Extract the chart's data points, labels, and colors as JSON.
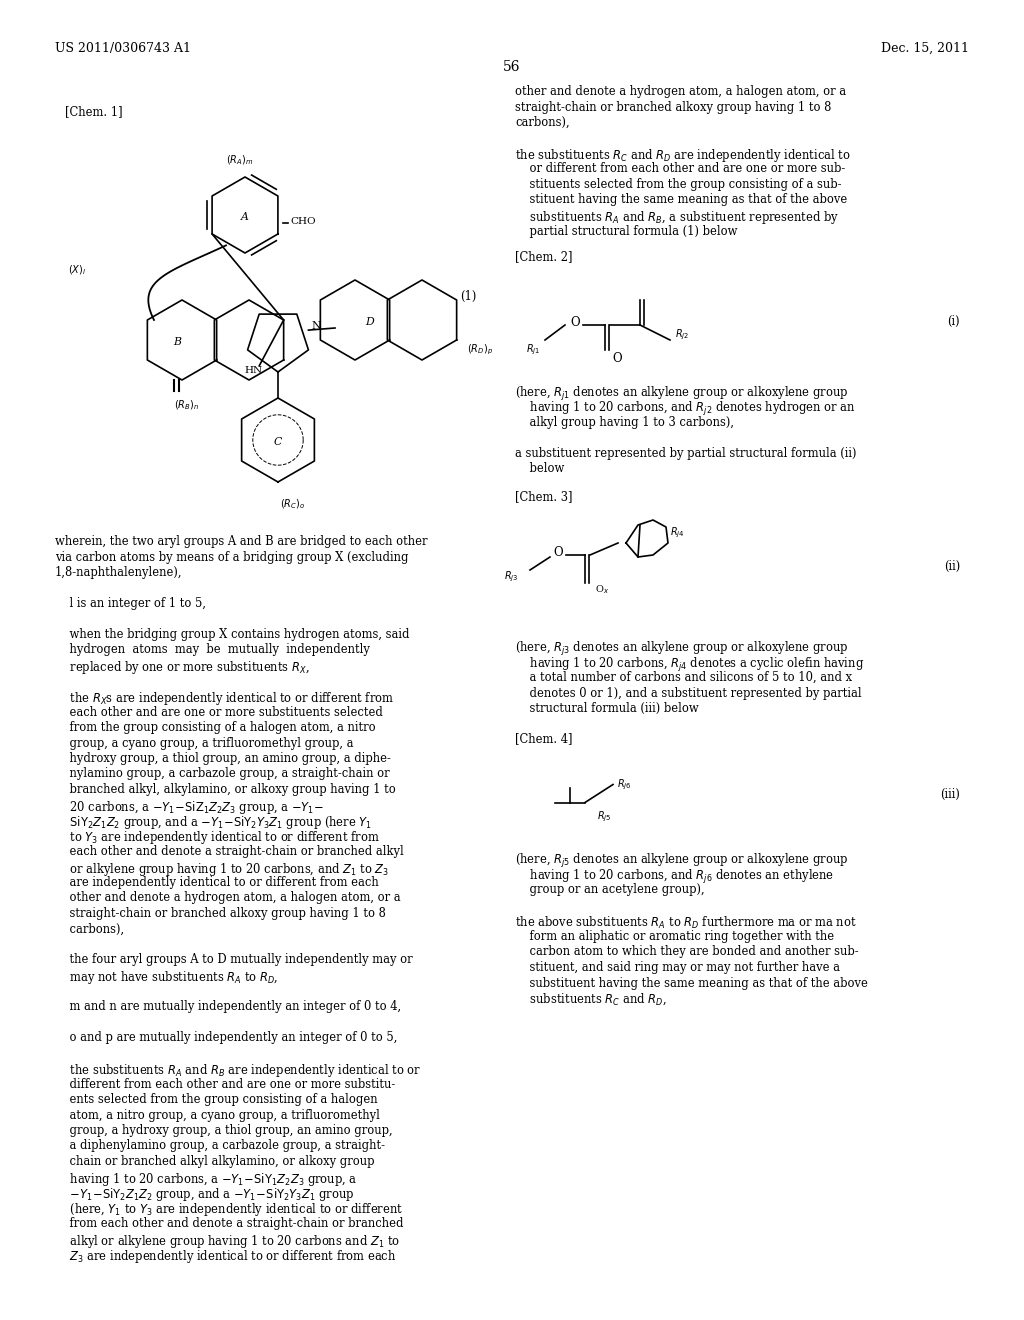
{
  "bg_color": "#ffffff",
  "header_left": "US 2011/0306743 A1",
  "header_right": "Dec. 15, 2011",
  "page_number": "56",
  "font_size_body": 8.3,
  "font_size_small": 7.0,
  "font_size_header": 9.0
}
